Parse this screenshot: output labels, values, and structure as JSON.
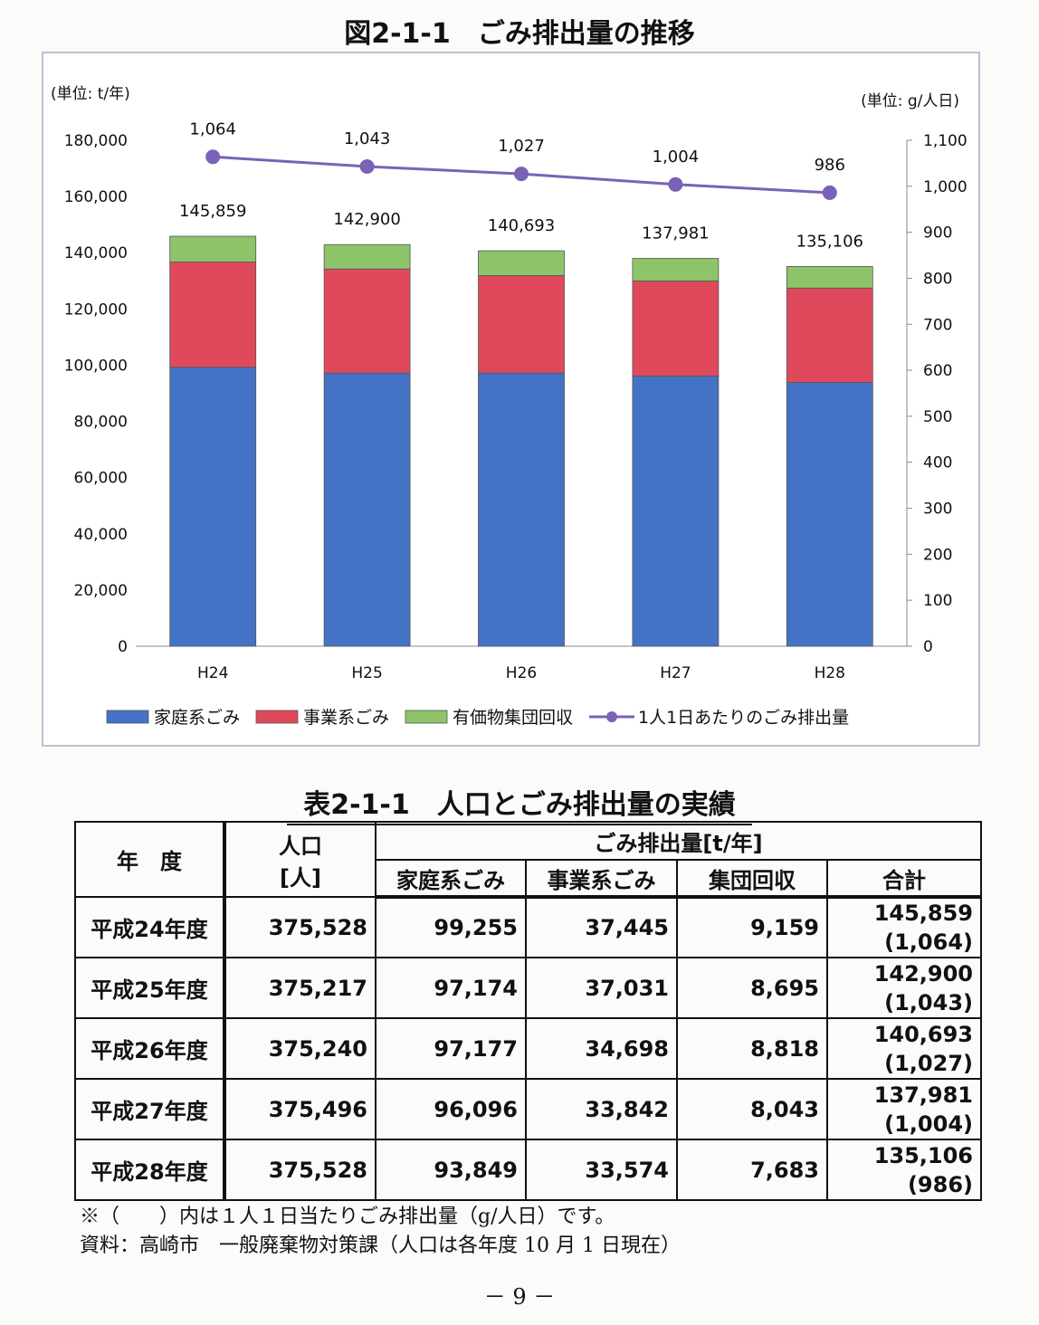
{
  "figure_title": "図2-1-1　ごみ排出量の推移",
  "chart_data": {
    "type": "bar",
    "stacked": true,
    "categories": [
      "H24",
      "H25",
      "H26",
      "H27",
      "H28"
    ],
    "series": [
      {
        "name": "家庭系ごみ",
        "values": [
          99255,
          97174,
          97177,
          96096,
          93849
        ],
        "color": "#4472c4"
      },
      {
        "name": "事業系ごみ",
        "values": [
          37445,
          37031,
          34698,
          33842,
          33574
        ],
        "color": "#e0495b"
      },
      {
        "name": "有価物集団回収",
        "values": [
          9159,
          8695,
          8818,
          8043,
          7683
        ],
        "color": "#8dc46a"
      }
    ],
    "totals": [
      145859,
      142900,
      140693,
      137981,
      135106
    ],
    "total_labels": [
      "145,859",
      "142,900",
      "140,693",
      "137,981",
      "135,106"
    ],
    "line_series": {
      "name": "1人1日あたりのごみ排出量",
      "values": [
        1064,
        1043,
        1027,
        1004,
        986
      ],
      "labels": [
        "1,064",
        "1,043",
        "1,027",
        "1,004",
        "986"
      ],
      "color": "#7a62b8",
      "axis": "right"
    },
    "left_axis": {
      "unit": "(単位: t/年)",
      "ylim": [
        0,
        180000
      ],
      "ticks": [
        "0",
        "20,000",
        "40,000",
        "60,000",
        "80,000",
        "100,000",
        "120,000",
        "140,000",
        "160,000",
        "180,000"
      ]
    },
    "right_axis": {
      "unit": "(単位: g/人日)",
      "ylim": [
        0,
        1100
      ],
      "ticks": [
        "0",
        "100",
        "200",
        "300",
        "400",
        "500",
        "600",
        "700",
        "800",
        "900",
        "1,000",
        "1,100"
      ]
    },
    "legend_position": "bottom",
    "grid": false
  },
  "table": {
    "title": "表2-1-1　人口とごみ排出量の実績",
    "header_year": "年　度",
    "header_pop_1": "人口",
    "header_pop_2": "[人]",
    "header_group": "ごみ排出量[t/年]",
    "header_home": "家庭系ごみ",
    "header_biz": "事業系ごみ",
    "header_group_collect": "集団回収",
    "header_total": "合計",
    "rows": [
      {
        "year": "平成24年度",
        "population": "375,528",
        "home": "99,255",
        "business": "37,445",
        "collection": "9,159",
        "total": "145,859",
        "per_person": "(1,064)"
      },
      {
        "year": "平成25年度",
        "population": "375,217",
        "home": "97,174",
        "business": "37,031",
        "collection": "8,695",
        "total": "142,900",
        "per_person": "(1,043)"
      },
      {
        "year": "平成26年度",
        "population": "375,240",
        "home": "97,177",
        "business": "34,698",
        "collection": "8,818",
        "total": "140,693",
        "per_person": "(1,027)"
      },
      {
        "year": "平成27年度",
        "population": "375,496",
        "home": "96,096",
        "business": "33,842",
        "collection": "8,043",
        "total": "137,981",
        "per_person": "(1,004)"
      },
      {
        "year": "平成28年度",
        "population": "375,528",
        "home": "93,849",
        "business": "33,574",
        "collection": "7,683",
        "total": "135,106",
        "per_person": "(986)"
      }
    ]
  },
  "notes": {
    "note1": "※（　　）内は１人１日当たりごみ排出量（g/人日）です。",
    "note2": "資料：高崎市　一般廃棄物対策課（人口は各年度 10 月 1 日現在）"
  },
  "page_number": "－ 9 －"
}
